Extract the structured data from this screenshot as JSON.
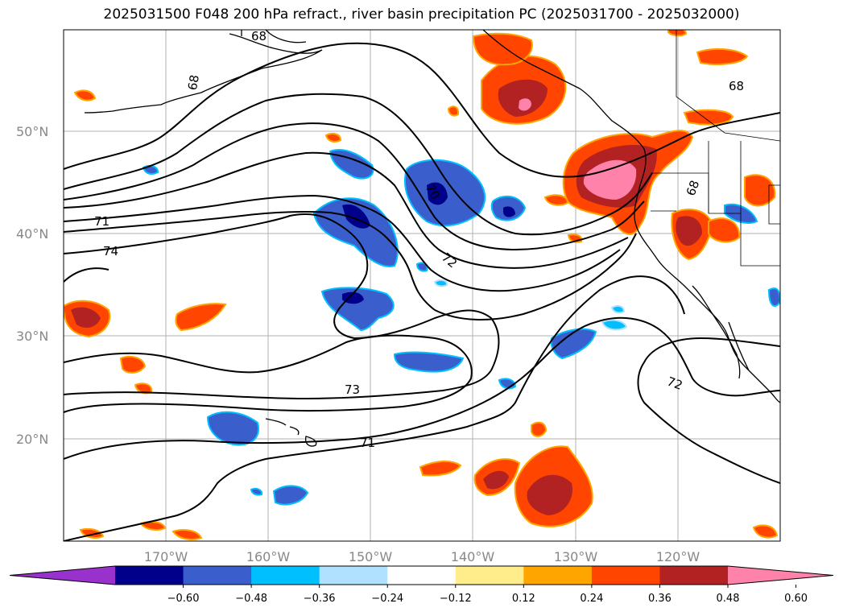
{
  "title": "2025031500 F048 200 hPa refract., river basin precipitation PC (2025031700 - 2025032000)",
  "axes": {
    "lat_labels": [
      "50°N",
      "40°N",
      "30°N",
      "20°N"
    ],
    "lon_labels": [
      "170°W",
      "160°W",
      "150°W",
      "140°W",
      "130°W",
      "120°W"
    ]
  },
  "contour_labels": [
    "68",
    "68",
    "68",
    "71",
    "74",
    "70",
    "72",
    "73",
    "71",
    "72",
    "68"
  ],
  "colorbar": {
    "ticks": [
      "−0.60",
      "−0.48",
      "−0.36",
      "−0.24",
      "−0.12",
      "0.12",
      "0.24",
      "0.36",
      "0.48",
      "0.60"
    ],
    "colors": [
      "#9932cc",
      "#00008b",
      "#3a5fcd",
      "#00bfff",
      "#b0e2ff",
      "#ffffff",
      "#ffec8b",
      "#ffa500",
      "#ff4500",
      "#b22222",
      "#ff82ab"
    ]
  }
}
